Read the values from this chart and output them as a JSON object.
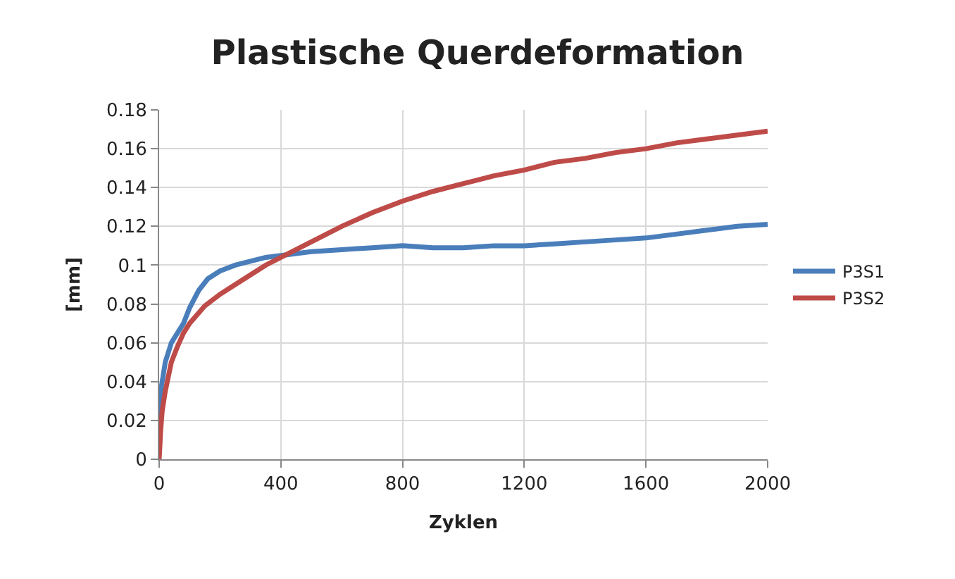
{
  "chart_data": {
    "type": "line",
    "title": "Plastische Querdeformation",
    "xlabel": "Zyklen",
    "ylabel": "[mm]",
    "xlim": [
      0,
      2000
    ],
    "xticks": [
      0,
      400,
      800,
      1200,
      1600,
      2000
    ],
    "ylim": [
      0,
      0.18
    ],
    "yticks": [
      0,
      0.02,
      0.04,
      0.06,
      0.08,
      0.1,
      0.12,
      0.14,
      0.16,
      0.18
    ],
    "grid": true,
    "legend": "right",
    "marker": "none",
    "line_style": "solid",
    "series": [
      {
        "name": "P3S1",
        "color": "#4a7ebb",
        "x": [
          0,
          5,
          20,
          40,
          60,
          80,
          100,
          130,
          160,
          200,
          250,
          300,
          350,
          400,
          500,
          600,
          700,
          800,
          900,
          1000,
          1100,
          1200,
          1300,
          1400,
          1500,
          1600,
          1700,
          1800,
          1900,
          2000
        ],
        "values": [
          0.02,
          0.035,
          0.05,
          0.06,
          0.065,
          0.07,
          0.078,
          0.087,
          0.093,
          0.097,
          0.1,
          0.102,
          0.104,
          0.105,
          0.107,
          0.108,
          0.109,
          0.11,
          0.109,
          0.109,
          0.11,
          0.11,
          0.111,
          0.112,
          0.113,
          0.114,
          0.116,
          0.118,
          0.12,
          0.121
        ]
      },
      {
        "name": "P3S2",
        "color": "#be4b48",
        "x": [
          0,
          5,
          10,
          20,
          40,
          60,
          80,
          100,
          150,
          200,
          250,
          300,
          350,
          400,
          500,
          600,
          700,
          800,
          900,
          1000,
          1100,
          1200,
          1300,
          1400,
          1500,
          1600,
          1700,
          1800,
          1900,
          2000
        ],
        "values": [
          0,
          0.015,
          0.025,
          0.035,
          0.05,
          0.058,
          0.065,
          0.07,
          0.079,
          0.085,
          0.09,
          0.095,
          0.1,
          0.104,
          0.112,
          0.12,
          0.127,
          0.133,
          0.138,
          0.142,
          0.146,
          0.149,
          0.153,
          0.155,
          0.158,
          0.16,
          0.163,
          0.165,
          0.167,
          0.169
        ]
      }
    ]
  }
}
